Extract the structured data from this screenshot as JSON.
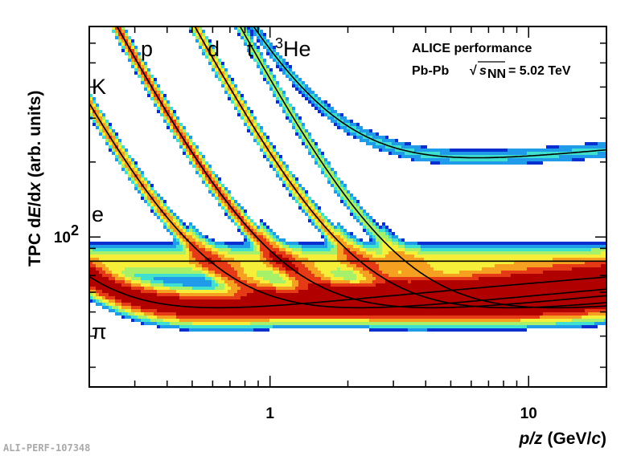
{
  "chart_data": {
    "type": "heatmap",
    "title": "",
    "xlabel": "p/z (GeV/c)",
    "ylabel": "TPC dE/dx (arb. units)",
    "x_scale": "log",
    "y_scale": "log",
    "xlim": [
      0.2,
      20
    ],
    "ylim": [
      25,
      700
    ],
    "x_ticks": [
      {
        "value": 1,
        "label": "1"
      },
      {
        "value": 10,
        "label": "10"
      }
    ],
    "y_ticks": [
      {
        "value": 100,
        "label": "10",
        "sup": "2"
      }
    ],
    "annotation": {
      "line1": "ALICE performance",
      "line2_prefix": "Pb-Pb",
      "sqrt_symbol": "√",
      "s_var": "s",
      "s_sub": "NN",
      "energy": "= 5.02 TeV"
    },
    "particles": [
      {
        "name": "e",
        "label": "e",
        "label_sup": "",
        "mass": 0.000511,
        "z": 1,
        "curve": "flat"
      },
      {
        "name": "pi",
        "label": "π",
        "label_sup": "",
        "mass": 0.1396,
        "z": 1,
        "curve": "bethe"
      },
      {
        "name": "K",
        "label": "K",
        "label_sup": "",
        "mass": 0.4937,
        "z": 1,
        "curve": "bethe"
      },
      {
        "name": "p",
        "label": "p",
        "label_sup": "",
        "mass": 0.9383,
        "z": 1,
        "curve": "bethe"
      },
      {
        "name": "d",
        "label": "d",
        "label_sup": "",
        "mass": 1.8756,
        "z": 1,
        "curve": "bethe"
      },
      {
        "name": "t",
        "label": "t",
        "label_sup": "",
        "mass": 2.8089,
        "z": 1,
        "curve": "bethe"
      },
      {
        "name": "he3",
        "label": "He",
        "label_sup": "3",
        "mass": 2.8084,
        "z": 2,
        "curve": "bethe"
      }
    ],
    "electron_plateau": 80,
    "mip_level": 52,
    "colormap": [
      "#08086b",
      "#0a2fd0",
      "#1f9bea",
      "#3fe0d0",
      "#a6f06a",
      "#f6ef3a",
      "#f5a020",
      "#e53a15",
      "#b00000"
    ],
    "watermark": "ALI-PERF-107348"
  }
}
